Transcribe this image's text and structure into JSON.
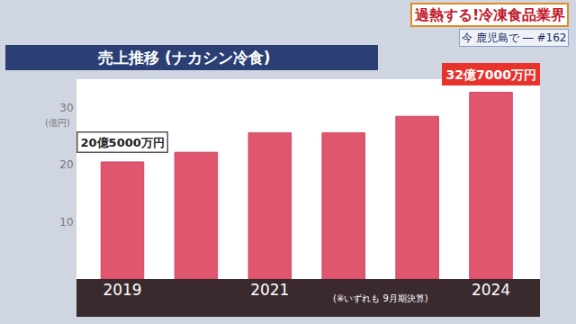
{
  "chart_data": {
    "type": "bar",
    "title": "売上推移 (ナカシン冷食)",
    "subtitle": "過熱する!冷凍食品業界",
    "ylabel": "(億円)",
    "categories": [
      "2019",
      null,
      "2021",
      null,
      null,
      "2024"
    ],
    "values": [
      20.5,
      22.2,
      25.6,
      25.6,
      28.5,
      32.7
    ],
    "value_labels": [
      "20億5000万円",
      null,
      null,
      null,
      null,
      "32億7000万円"
    ],
    "data_labels": true,
    "color": "#e0566f",
    "ylim": [
      0,
      35
    ],
    "yticks": [
      10,
      20,
      30
    ],
    "grid": false,
    "annotations": [
      "(※いずれも 9月期決算)",
      "今 鹿児島で ― #162"
    ]
  }
}
